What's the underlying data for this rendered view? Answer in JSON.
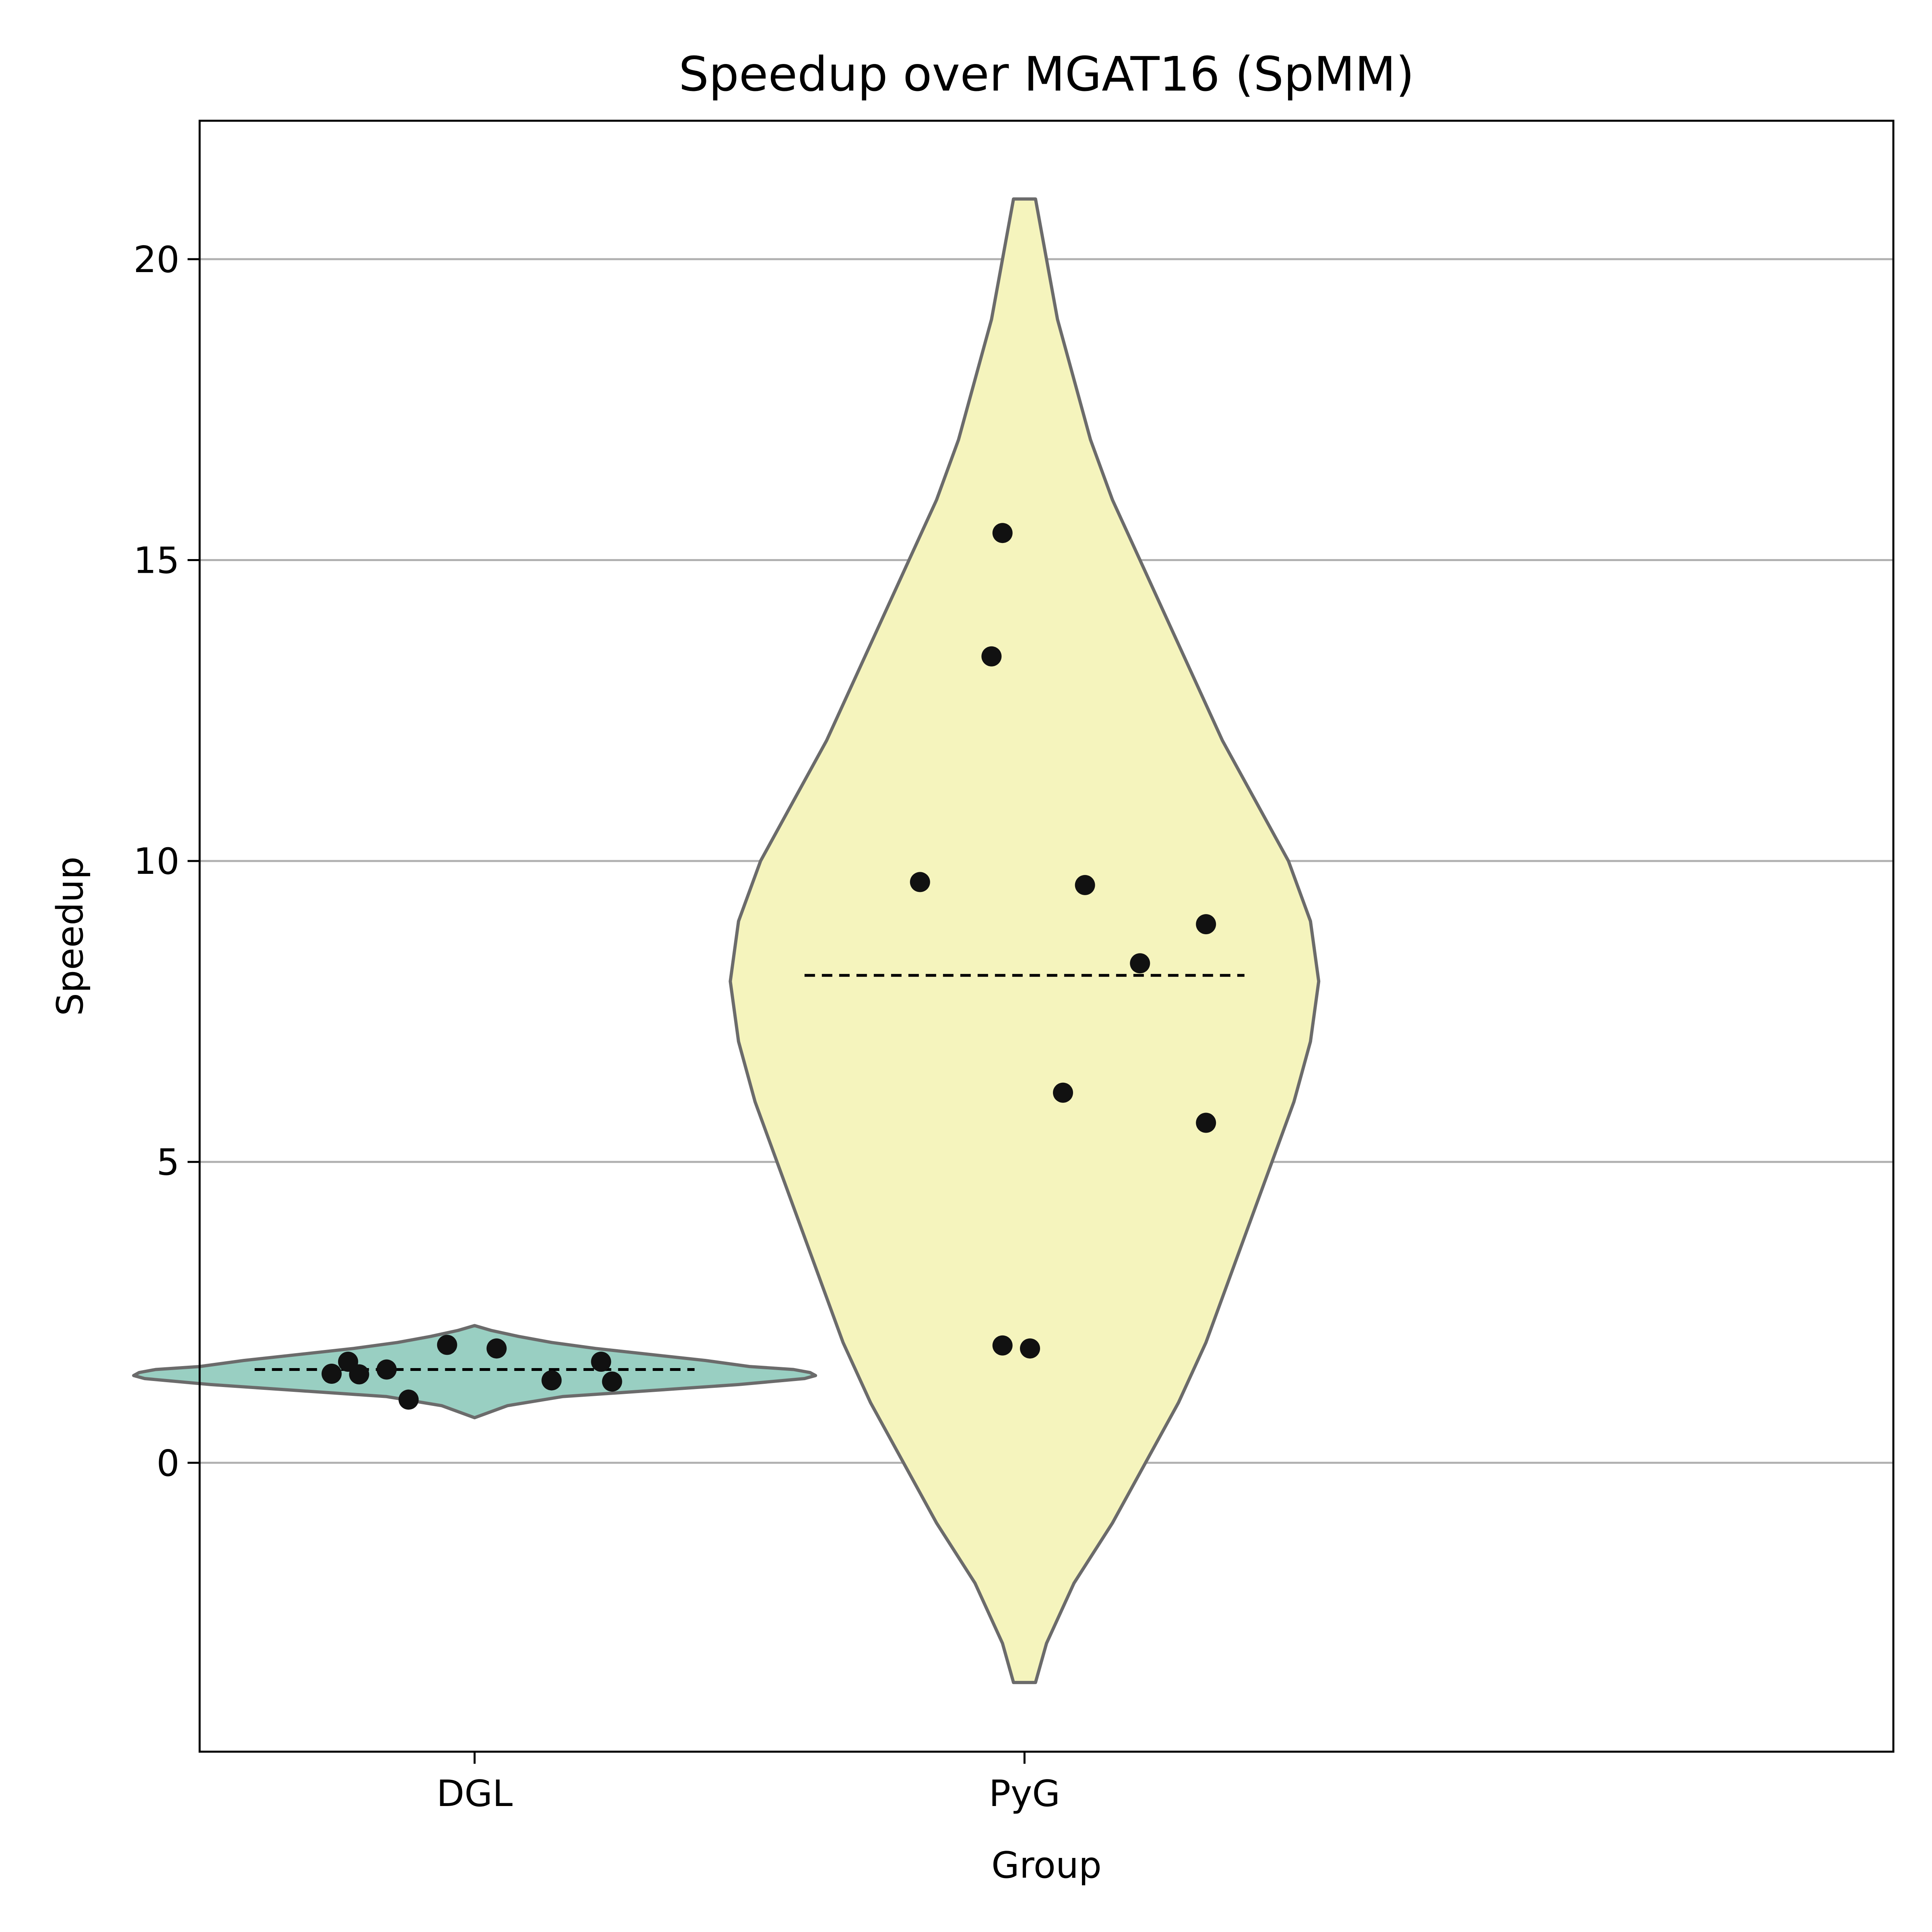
{
  "chart_data": {
    "type": "violin",
    "title": "Speedup over MGAT16 (SpMM)",
    "xlabel": "Group",
    "ylabel": "Speedup",
    "ylim": [
      -4.8,
      22.3
    ],
    "yticks": [
      0,
      5,
      10,
      15,
      20
    ],
    "ytick_labels": [
      "0",
      "5",
      "10",
      "15",
      "20"
    ],
    "grid": "horizontal",
    "categories": [
      "DGL",
      "PyG"
    ],
    "groups": [
      {
        "name": "DGL",
        "fill": "#99cfc2",
        "mean": 1.55,
        "points": [
          1.68,
          1.48,
          1.47,
          1.55,
          1.96,
          1.05,
          1.9,
          1.37,
          1.68,
          1.35
        ],
        "jitter": [
          -0.23,
          -0.26,
          -0.21,
          -0.16,
          -0.05,
          -0.12,
          0.04,
          0.14,
          0.23,
          0.25
        ],
        "density_profile": [
          [
            0.75,
            0.0
          ],
          [
            0.95,
            0.06
          ],
          [
            1.1,
            0.16
          ],
          [
            1.2,
            0.32
          ],
          [
            1.3,
            0.48
          ],
          [
            1.4,
            0.6
          ],
          [
            1.45,
            0.62
          ],
          [
            1.5,
            0.61
          ],
          [
            1.55,
            0.58
          ],
          [
            1.6,
            0.5
          ],
          [
            1.7,
            0.42
          ],
          [
            1.8,
            0.32
          ],
          [
            1.9,
            0.22
          ],
          [
            2.0,
            0.14
          ],
          [
            2.1,
            0.08
          ],
          [
            2.2,
            0.03
          ],
          [
            2.28,
            0.0
          ]
        ]
      },
      {
        "name": "PyG",
        "fill": "#f5f4bd",
        "mean": 8.1,
        "points": [
          15.45,
          13.4,
          9.65,
          9.6,
          8.95,
          8.3,
          6.15,
          5.65,
          1.95,
          1.9
        ],
        "jitter": [
          -0.04,
          -0.06,
          -0.19,
          0.11,
          0.33,
          0.21,
          0.07,
          0.33,
          -0.04,
          0.01
        ],
        "density_profile": [
          [
            -3.65,
            0.02
          ],
          [
            -3.0,
            0.04
          ],
          [
            -2.0,
            0.09
          ],
          [
            -1.0,
            0.16
          ],
          [
            0.0,
            0.22
          ],
          [
            1.0,
            0.28
          ],
          [
            2.0,
            0.33
          ],
          [
            3.0,
            0.37
          ],
          [
            4.0,
            0.41
          ],
          [
            5.0,
            0.45
          ],
          [
            6.0,
            0.49
          ],
          [
            7.0,
            0.52
          ],
          [
            8.0,
            0.535
          ],
          [
            9.0,
            0.52
          ],
          [
            10.0,
            0.48
          ],
          [
            11.0,
            0.42
          ],
          [
            12.0,
            0.36
          ],
          [
            13.0,
            0.31
          ],
          [
            14.0,
            0.26
          ],
          [
            15.0,
            0.21
          ],
          [
            16.0,
            0.16
          ],
          [
            17.0,
            0.12
          ],
          [
            18.0,
            0.09
          ],
          [
            19.0,
            0.06
          ],
          [
            20.0,
            0.04
          ],
          [
            21.0,
            0.02
          ]
        ]
      }
    ]
  }
}
